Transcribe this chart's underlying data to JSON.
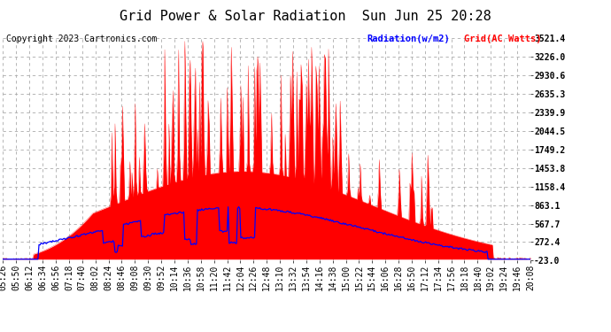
{
  "title": "Grid Power & Solar Radiation  Sun Jun 25 20:28",
  "copyright": "Copyright 2023 Cartronics.com",
  "legend_radiation": "Radiation(w/m2)",
  "legend_grid": "Grid(AC Watts)",
  "ylabel_right_ticks": [
    3521.4,
    3226.0,
    2930.6,
    2635.3,
    2339.9,
    2044.5,
    1749.2,
    1453.8,
    1158.4,
    863.1,
    567.7,
    272.4,
    -23.0
  ],
  "ymin": -23.0,
  "ymax": 3521.4,
  "background_color": "#ffffff",
  "plot_bg_color": "#ffffff",
  "grid_color": "#cccccc",
  "title_color": "#000000",
  "radiation_color": "#0000ff",
  "grid_fill_color": "#ff0000",
  "x_labels": [
    "05:26",
    "05:50",
    "06:12",
    "06:34",
    "06:56",
    "07:18",
    "07:40",
    "08:02",
    "08:24",
    "08:46",
    "09:08",
    "09:30",
    "09:52",
    "10:14",
    "10:36",
    "10:58",
    "11:20",
    "11:42",
    "12:04",
    "12:26",
    "12:48",
    "13:10",
    "13:32",
    "13:54",
    "14:16",
    "14:38",
    "15:00",
    "15:22",
    "15:44",
    "16:06",
    "16:28",
    "16:50",
    "17:12",
    "17:34",
    "17:56",
    "18:18",
    "18:40",
    "19:02",
    "19:24",
    "19:46",
    "20:08"
  ],
  "n_points": 500,
  "title_fontsize": 11,
  "tick_fontsize": 7,
  "copyright_fontsize": 7
}
